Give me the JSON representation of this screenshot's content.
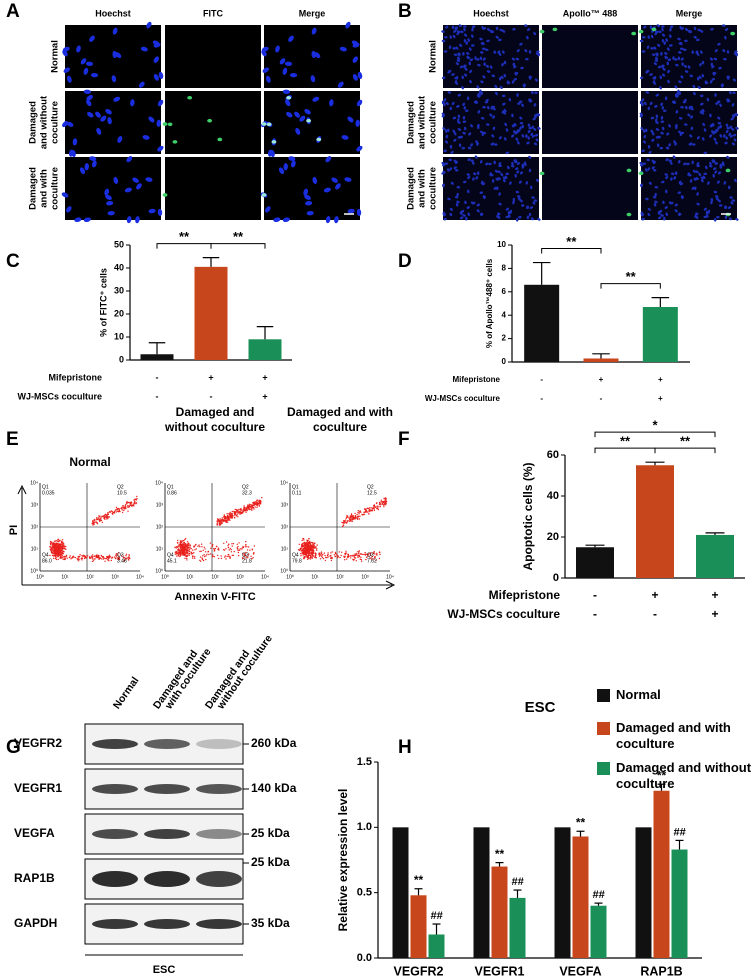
{
  "panels": {
    "A": {
      "label": "A",
      "columns": [
        "Hoechst",
        "FITC",
        "Merge"
      ],
      "rows": [
        [
          "Normal"
        ],
        [
          "Damaged",
          "and without",
          "coculture"
        ],
        [
          "Damaged",
          "and with",
          "coculture"
        ]
      ]
    },
    "B": {
      "label": "B",
      "columns": [
        "Hoechst",
        "Apollo™ 488",
        "Merge"
      ],
      "rows": [
        [
          "Normal"
        ],
        [
          "Damaged",
          "and without",
          "coculture"
        ],
        [
          "Damaged",
          "and with",
          "coculture"
        ]
      ]
    },
    "C": {
      "label": "C"
    },
    "D": {
      "label": "D"
    },
    "E": {
      "label": "E",
      "ylabel": "PI",
      "xlabel": "Annexin V-FITC",
      "axis_ticks": [
        "10⁰",
        "10¹",
        "10²",
        "10³",
        "10⁴"
      ],
      "plots": [
        {
          "title": "Normal",
          "quadrants": [
            {
              "name": "Q1",
              "value": "0.035"
            },
            {
              "name": "Q2",
              "value": "10.5"
            },
            {
              "name": "Q3",
              "value": "3.46"
            },
            {
              "name": "Q4",
              "value": "86.0"
            }
          ]
        },
        {
          "title": "Damaged and without coculture",
          "quadrants": [
            {
              "name": "Q1",
              "value": "0.86"
            },
            {
              "name": "Q2",
              "value": "32.3"
            },
            {
              "name": "Q3",
              "value": "21.8"
            },
            {
              "name": "Q4",
              "value": "45.1"
            }
          ]
        },
        {
          "title": "Damaged and with coculture",
          "quadrants": [
            {
              "name": "Q1",
              "value": "0.11"
            },
            {
              "name": "Q2",
              "value": "12.5"
            },
            {
              "name": "Q3",
              "value": "7.62"
            },
            {
              "name": "Q4",
              "value": "79.8"
            }
          ]
        }
      ]
    },
    "F": {
      "label": "F"
    },
    "G": {
      "label": "G",
      "columns": [
        [
          "Normal"
        ],
        [
          "Damaged and",
          "with coculture"
        ],
        [
          "Damaged and",
          "without coculture"
        ]
      ],
      "rows": [
        {
          "name": "VEGFR2",
          "size": "260 kDa"
        },
        {
          "name": "VEGFR1",
          "size": "140 kDa"
        },
        {
          "name": "VEGFA",
          "size": "25 kDa"
        },
        {
          "name": "RAP1B",
          "size": "25 kDa"
        },
        {
          "name": "GAPDH",
          "size": "35 kDa"
        }
      ],
      "footer": "ESC"
    },
    "H": {
      "label": "H"
    }
  },
  "chart_data": [
    {
      "type": "bar",
      "ylabel": "% of FITC⁺ cells",
      "ylim": [
        0,
        50
      ],
      "yticks": [
        0,
        10,
        20,
        30,
        40,
        50
      ],
      "values": [
        2.5,
        40.5,
        9
      ],
      "errors": [
        5,
        4,
        5.5
      ],
      "colors": [
        "#111111",
        "#c8461b",
        "#1a9058"
      ],
      "significance": [
        {
          "text": "**",
          "from": 0,
          "to": 1
        },
        {
          "text": "**",
          "from": 1,
          "to": 2
        }
      ],
      "conditions": [
        {
          "name": "Mifepristone",
          "values": [
            "-",
            "+",
            "+"
          ]
        },
        {
          "name": "WJ-MSCs coculture",
          "values": [
            "-",
            "-",
            "+"
          ]
        }
      ]
    },
    {
      "type": "bar",
      "ylabel": "% of Apollo™488⁺ cells",
      "ylim": [
        0,
        10
      ],
      "yticks": [
        0,
        2,
        4,
        6,
        8,
        10
      ],
      "values": [
        6.6,
        0.3,
        4.7
      ],
      "errors": [
        1.9,
        0.4,
        0.8
      ],
      "colors": [
        "#111111",
        "#c8461b",
        "#1a9058"
      ],
      "significance": [
        {
          "text": "**",
          "from": 0,
          "to": 1
        },
        {
          "text": "**",
          "from": 1,
          "to": 2
        }
      ],
      "conditions": [
        {
          "name": "Mifepristone",
          "values": [
            "-",
            "+",
            "+"
          ]
        },
        {
          "name": "WJ-MSCs coculture",
          "values": [
            "-",
            "-",
            "+"
          ]
        }
      ]
    },
    {
      "type": "bar",
      "ylabel": "Apoptotic cells (%)",
      "ylim": [
        0,
        60
      ],
      "yticks": [
        0,
        20,
        40,
        60
      ],
      "values": [
        15,
        55,
        21
      ],
      "errors": [
        1,
        1.5,
        1
      ],
      "colors": [
        "#111111",
        "#c8461b",
        "#1a9058"
      ],
      "significance": [
        {
          "text": "**",
          "from": 0,
          "to": 1
        },
        {
          "text": "**",
          "from": 1,
          "to": 2
        },
        {
          "text": "*",
          "from": 0,
          "to": 2
        }
      ],
      "conditions": [
        {
          "name": "Mifepristone",
          "values": [
            "-",
            "+",
            "+"
          ]
        },
        {
          "name": "WJ-MSCs coculture",
          "values": [
            "-",
            "-",
            "+"
          ]
        }
      ]
    },
    {
      "type": "grouped_bar",
      "title": "ESC",
      "ylabel": "Relative expression level",
      "ylim": [
        0,
        1.5
      ],
      "yticks": [
        {
          "value": 0,
          "label": "0.0"
        },
        {
          "value": 0.5,
          "label": "0.5"
        },
        {
          "value": 1,
          "label": "1.0"
        },
        {
          "value": 1.5,
          "label": "1.5"
        }
      ],
      "categories": [
        "VEGFR2",
        "VEGFR1",
        "VEGFA",
        "RAP1B"
      ],
      "legend": "upper right",
      "series": [
        {
          "name": "Normal",
          "color": "#111111",
          "values": [
            1,
            1,
            1,
            1
          ]
        },
        {
          "name": "Damaged and with coculture",
          "color": "#c8461b",
          "values": [
            0.48,
            0.7,
            0.93,
            1.28
          ],
          "errors": [
            0.05,
            0.03,
            0.04,
            0.05
          ],
          "annotation": "**"
        },
        {
          "name": "Damaged and without coculture",
          "color": "#1a9058",
          "values": [
            0.18,
            0.46,
            0.4,
            0.83
          ],
          "errors": [
            0.08,
            0.06,
            0.02,
            0.07
          ],
          "annotation": "##"
        }
      ]
    }
  ]
}
